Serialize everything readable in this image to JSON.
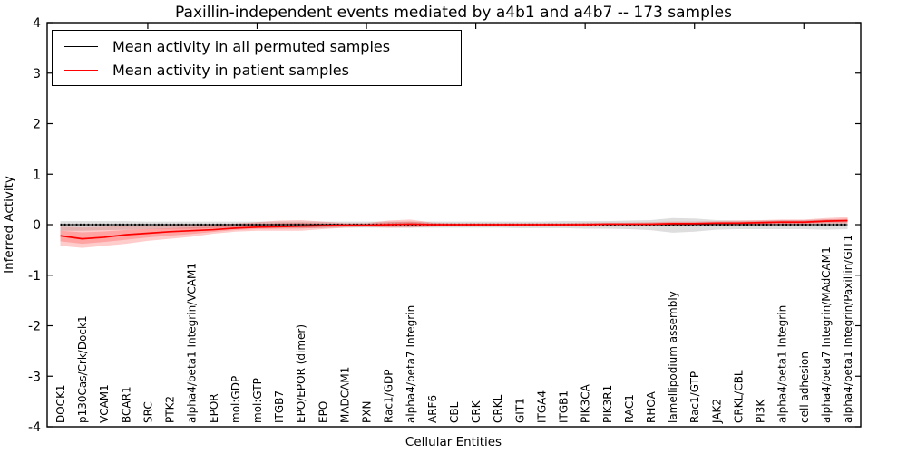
{
  "figure": {
    "title": "Paxillin-independent events mediated by a4b1 and a4b7 -- 173 samples",
    "xlabel": "Cellular Entities",
    "ylabel": "Inferred Activity",
    "background_color": "#ffffff",
    "frame_color": "#000000"
  },
  "legend": {
    "position": "upper left",
    "items": [
      {
        "label": "Mean activity in all permuted samples",
        "color": "#000000"
      },
      {
        "label": "Mean activity in patient samples",
        "color": "#ff0000"
      }
    ]
  },
  "chart_data": {
    "type": "line",
    "title": "Paxillin-independent events mediated by a4b1 and a4b7 -- 173 samples",
    "xlabel": "Cellular Entities",
    "ylabel": "Inferred Activity",
    "ylim": [
      -4,
      4
    ],
    "yticks": [
      -4,
      -3,
      -2,
      -1,
      0,
      1,
      2,
      3,
      4
    ],
    "xtick_marks_every": 5,
    "grid": false,
    "legend_position": "upper left",
    "categories": [
      "DOCK1",
      "p130Cas/Crk/Dock1",
      "VCAM1",
      "BCAR1",
      "SRC",
      "PTK2",
      "alpha4/beta1 Integrin/VCAM1",
      "EPOR",
      "mol:GDP",
      "mol:GTP",
      "ITGB7",
      "EPO/EPOR (dimer)",
      "EPO",
      "MADCAM1",
      "PXN",
      "Rac1/GDP",
      "alpha4/beta7 Integrin",
      "ARF6",
      "CBL",
      "CRK",
      "CRKL",
      "GIT1",
      "ITGA4",
      "ITGB1",
      "PIK3CA",
      "PIK3R1",
      "RAC1",
      "RHOA",
      "lamellipodium assembly",
      "Rac1/GTP",
      "JAK2",
      "CRKL/CBL",
      "PI3K",
      "alpha4/beta1 Integrin",
      "cell adhesion",
      "alpha4/beta7 Integrin/MAdCAM1",
      "alpha4/beta1 Integrin/Paxillin/GIT1"
    ],
    "series": [
      {
        "name": "Mean activity in all permuted samples",
        "color": "#000000",
        "line_style": "dash-dot",
        "band_color": "#999999",
        "band_opacity": 0.32,
        "double_band": false,
        "values": [
          0,
          0,
          0,
          0,
          0,
          0,
          0,
          0,
          0,
          0,
          0,
          0,
          0,
          0,
          0,
          0,
          0,
          0,
          0,
          0,
          0,
          0,
          0,
          0,
          0,
          0,
          0,
          0,
          0,
          0,
          0,
          0,
          0,
          0,
          0,
          0,
          0
        ],
        "band_upper": [
          0.07,
          0.07,
          0.07,
          0.07,
          0.06,
          0.06,
          0.06,
          0.06,
          0.06,
          0.06,
          0.06,
          0.06,
          0.06,
          0.06,
          0.06,
          0.06,
          0.06,
          0.06,
          0.06,
          0.06,
          0.06,
          0.06,
          0.06,
          0.07,
          0.07,
          0.07,
          0.08,
          0.09,
          0.13,
          0.12,
          0.09,
          0.08,
          0.08,
          0.09,
          0.09,
          0.1,
          0.1
        ],
        "band_lower": [
          -0.12,
          -0.12,
          -0.11,
          -0.1,
          -0.09,
          -0.08,
          -0.08,
          -0.07,
          -0.07,
          -0.07,
          -0.07,
          -0.07,
          -0.07,
          -0.06,
          -0.06,
          -0.06,
          -0.06,
          -0.06,
          -0.06,
          -0.06,
          -0.06,
          -0.07,
          -0.07,
          -0.07,
          -0.08,
          -0.08,
          -0.09,
          -0.11,
          -0.16,
          -0.14,
          -0.1,
          -0.09,
          -0.09,
          -0.09,
          -0.09,
          -0.1,
          -0.09
        ]
      },
      {
        "name": "Mean activity in patient samples",
        "color": "#ff0000",
        "line_style": "solid",
        "band_color": "#ff0000",
        "band_opacity": 0.2,
        "double_band": true,
        "values": [
          -0.22,
          -0.28,
          -0.25,
          -0.2,
          -0.17,
          -0.14,
          -0.12,
          -0.1,
          -0.07,
          -0.05,
          -0.04,
          -0.03,
          -0.02,
          -0.01,
          -0.01,
          0.0,
          0.01,
          0.0,
          0.0,
          0.0,
          0.0,
          0.0,
          0.0,
          0.0,
          0.0,
          0.01,
          0.01,
          0.01,
          0.02,
          0.02,
          0.03,
          0.03,
          0.04,
          0.05,
          0.05,
          0.07,
          0.08
        ],
        "band_upper": [
          -0.04,
          -0.05,
          -0.04,
          -0.03,
          -0.02,
          -0.01,
          0.0,
          0.01,
          0.02,
          0.05,
          0.08,
          0.09,
          0.06,
          0.03,
          0.03,
          0.08,
          0.1,
          0.04,
          0.03,
          0.03,
          0.03,
          0.03,
          0.03,
          0.03,
          0.04,
          0.04,
          0.04,
          0.05,
          0.06,
          0.06,
          0.07,
          0.08,
          0.09,
          0.1,
          0.1,
          0.13,
          0.15
        ],
        "band_lower": [
          -0.42,
          -0.46,
          -0.42,
          -0.38,
          -0.32,
          -0.28,
          -0.24,
          -0.18,
          -0.14,
          -0.12,
          -0.12,
          -0.12,
          -0.09,
          -0.06,
          -0.05,
          -0.06,
          -0.06,
          -0.04,
          -0.03,
          -0.03,
          -0.03,
          -0.03,
          -0.03,
          -0.03,
          -0.03,
          -0.02,
          -0.02,
          -0.02,
          -0.02,
          -0.01,
          -0.01,
          0.0,
          0.0,
          0.01,
          0.01,
          0.02,
          0.02
        ]
      }
    ]
  }
}
